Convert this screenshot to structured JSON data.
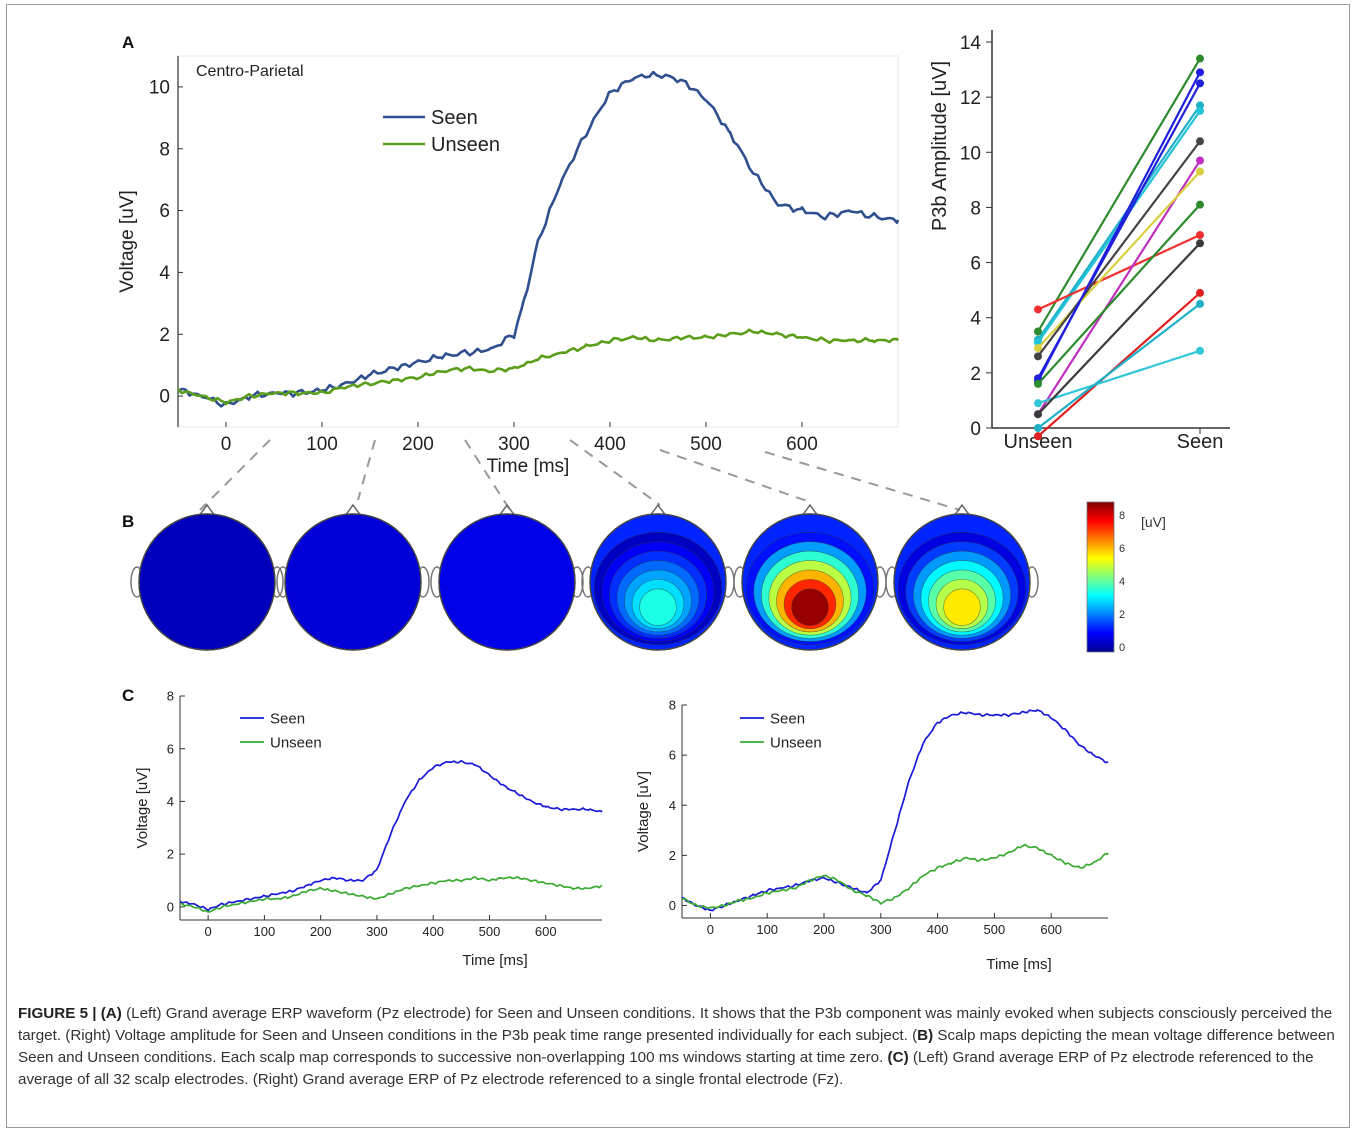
{
  "panel_labels": {
    "a": "A",
    "b": "B",
    "c": "C"
  },
  "panel_a": {
    "region_label": "Centro-Parietal",
    "colors": {
      "seen": "#2f4f8f",
      "unseen": "#5a9e1a"
    }
  },
  "panel_a_right": {
    "colors": [
      "#2d8a2d",
      "#1fb0c8",
      "#22c4d8",
      "#2020d8",
      "#f03030",
      "#c030c0",
      "#d8d040",
      "#444444",
      "#1e1ee0",
      "#e02020",
      "#30c8d8",
      "#3a3a3a"
    ]
  },
  "panel_b": {
    "colorbar_unit": "[uV]",
    "colorbar_ticks": [
      "8",
      "6",
      "4",
      "2",
      "0"
    ],
    "map_levels": [
      0.1,
      0.4,
      0.6,
      3.6,
      8.8,
      5.8
    ]
  },
  "panel_c": {
    "colors": {
      "seen": "#1a1ad8",
      "unseen": "#3aaa32"
    }
  },
  "chart_data": [
    {
      "type": "line",
      "x": [
        -50,
        -25,
        0,
        25,
        50,
        75,
        100,
        125,
        150,
        175,
        200,
        225,
        250,
        275,
        300,
        310,
        325,
        350,
        375,
        400,
        425,
        450,
        475,
        500,
        525,
        550,
        575,
        600,
        625,
        650,
        675,
        700
      ],
      "series": [
        {
          "name": "Seen",
          "values": [
            0.2,
            0.0,
            -0.3,
            0.0,
            0.1,
            0.1,
            0.2,
            0.4,
            0.7,
            0.9,
            1.1,
            1.3,
            1.4,
            1.5,
            2.0,
            3.0,
            5.0,
            7.0,
            8.5,
            9.8,
            10.3,
            10.4,
            10.2,
            9.6,
            8.5,
            7.2,
            6.2,
            6.0,
            5.8,
            6.0,
            5.8,
            5.7
          ]
        },
        {
          "name": "Unseen",
          "values": [
            0.2,
            0.0,
            -0.2,
            0.0,
            0.1,
            0.1,
            0.1,
            0.3,
            0.4,
            0.5,
            0.6,
            0.8,
            0.9,
            0.8,
            0.9,
            1.0,
            1.2,
            1.4,
            1.6,
            1.8,
            1.9,
            1.8,
            1.9,
            1.9,
            2.0,
            2.1,
            2.0,
            1.9,
            1.8,
            1.8,
            1.8,
            1.8
          ]
        }
      ],
      "xlabel": "Time [ms]",
      "ylabel": "Voltage [uV]",
      "xlim": [
        -50,
        700
      ],
      "ylim": [
        -1,
        11
      ],
      "x_ticks": [
        0,
        100,
        200,
        300,
        400,
        500,
        600
      ],
      "y_ticks": [
        0,
        2,
        4,
        6,
        8,
        10
      ],
      "legend_position": "top-center"
    },
    {
      "type": "line",
      "categories": [
        "Unseen",
        "Seen"
      ],
      "series": [
        {
          "values": [
            3.5,
            13.4
          ]
        },
        {
          "values": [
            3.2,
            11.7
          ]
        },
        {
          "values": [
            3.1,
            11.5
          ]
        },
        {
          "values": [
            1.8,
            12.5
          ]
        },
        {
          "values": [
            4.3,
            7.0
          ]
        },
        {
          "values": [
            0.5,
            9.7
          ]
        },
        {
          "values": [
            2.9,
            9.3
          ]
        },
        {
          "values": [
            2.6,
            10.4
          ]
        },
        {
          "values": [
            1.7,
            12.9
          ]
        },
        {
          "values": [
            -0.3,
            4.9
          ]
        },
        {
          "values": [
            0.9,
            2.8
          ]
        },
        {
          "values": [
            0.5,
            6.7
          ]
        },
        {
          "values": [
            1.6,
            8.1
          ]
        },
        {
          "values": [
            0.0,
            4.5
          ]
        }
      ],
      "ylabel": "P3b Amplitude [uV]",
      "ylim": [
        -1,
        14
      ],
      "y_ticks": [
        0,
        2,
        4,
        6,
        8,
        10,
        12,
        14
      ]
    },
    {
      "type": "line",
      "x": [
        -50,
        -25,
        0,
        25,
        50,
        75,
        100,
        125,
        150,
        175,
        200,
        225,
        250,
        275,
        300,
        325,
        350,
        375,
        400,
        425,
        450,
        475,
        500,
        525,
        550,
        575,
        600,
        625,
        650,
        675,
        700
      ],
      "series": [
        {
          "name": "Seen",
          "values": [
            0.2,
            0.1,
            -0.1,
            0.1,
            0.2,
            0.3,
            0.4,
            0.5,
            0.6,
            0.8,
            1.0,
            1.1,
            1.0,
            1.0,
            1.4,
            2.8,
            4.0,
            4.8,
            5.3,
            5.5,
            5.5,
            5.4,
            5.0,
            4.6,
            4.3,
            4.0,
            3.8,
            3.7,
            3.7,
            3.7,
            3.6
          ]
        },
        {
          "name": "Unseen",
          "values": [
            0.1,
            0.0,
            -0.2,
            0.0,
            0.1,
            0.2,
            0.3,
            0.3,
            0.4,
            0.6,
            0.7,
            0.6,
            0.5,
            0.4,
            0.3,
            0.5,
            0.7,
            0.8,
            0.9,
            1.0,
            1.0,
            1.1,
            1.0,
            1.1,
            1.1,
            1.0,
            0.9,
            0.8,
            0.7,
            0.7,
            0.8
          ]
        }
      ],
      "xlabel": "Time [ms]",
      "ylabel": "Voltage [uV]",
      "xlim": [
        -50,
        700
      ],
      "ylim": [
        -0.5,
        8
      ],
      "x_ticks": [
        0,
        100,
        200,
        300,
        400,
        500,
        600
      ],
      "y_ticks": [
        0,
        2,
        4,
        6,
        8
      ],
      "legend_position": "top-left"
    },
    {
      "type": "line",
      "x": [
        -50,
        -25,
        0,
        25,
        50,
        75,
        100,
        125,
        150,
        175,
        200,
        225,
        250,
        275,
        300,
        325,
        350,
        375,
        400,
        425,
        450,
        475,
        500,
        525,
        550,
        575,
        600,
        625,
        650,
        675,
        700
      ],
      "series": [
        {
          "name": "Seen",
          "values": [
            0.3,
            0.0,
            -0.2,
            0.0,
            0.2,
            0.4,
            0.6,
            0.7,
            0.8,
            1.0,
            1.1,
            0.9,
            0.7,
            0.5,
            1.0,
            3.0,
            5.0,
            6.5,
            7.3,
            7.6,
            7.7,
            7.6,
            7.6,
            7.6,
            7.7,
            7.8,
            7.5,
            7.0,
            6.4,
            6.0,
            5.7
          ]
        },
        {
          "name": "Unseen",
          "values": [
            0.3,
            0.0,
            -0.1,
            0.0,
            0.2,
            0.3,
            0.5,
            0.6,
            0.7,
            1.0,
            1.2,
            1.0,
            0.6,
            0.4,
            0.1,
            0.3,
            0.7,
            1.2,
            1.5,
            1.7,
            1.9,
            1.8,
            1.9,
            2.1,
            2.4,
            2.3,
            2.0,
            1.7,
            1.5,
            1.7,
            2.1
          ]
        }
      ],
      "xlabel": "Time [ms]",
      "ylabel": "Voltage [uV]",
      "xlim": [
        -50,
        700
      ],
      "ylim": [
        -0.5,
        8
      ],
      "x_ticks": [
        0,
        100,
        200,
        300,
        400,
        500,
        600
      ],
      "y_ticks": [
        0,
        2,
        4,
        6,
        8
      ],
      "legend_position": "top-left"
    }
  ],
  "caption": {
    "fig_num": "FIGURE 5 |",
    "a_label": "(A)",
    "a_text": "(Left) Grand average ERP waveform (Pz electrode) for Seen and Unseen conditions. It shows that the P3b component was mainly evoked when subjects consciously perceived the target. (Right) Voltage amplitude for Seen and Unseen conditions in the P3b peak time range presented individually for each subject. (",
    "b_label": "B)",
    "b_text": "Scalp maps depicting the mean voltage difference between Seen and Unseen conditions. Each scalp map corresponds to successive non-overlapping 100 ms windows starting at time zero.",
    "c_label": "(C)",
    "c_text": "(Left) Grand average ERP of Pz electrode referenced to the average of all 32 scalp electrodes. (Right) Grand average ERP of Pz electrode referenced to a single frontal electrode (Fz)."
  }
}
